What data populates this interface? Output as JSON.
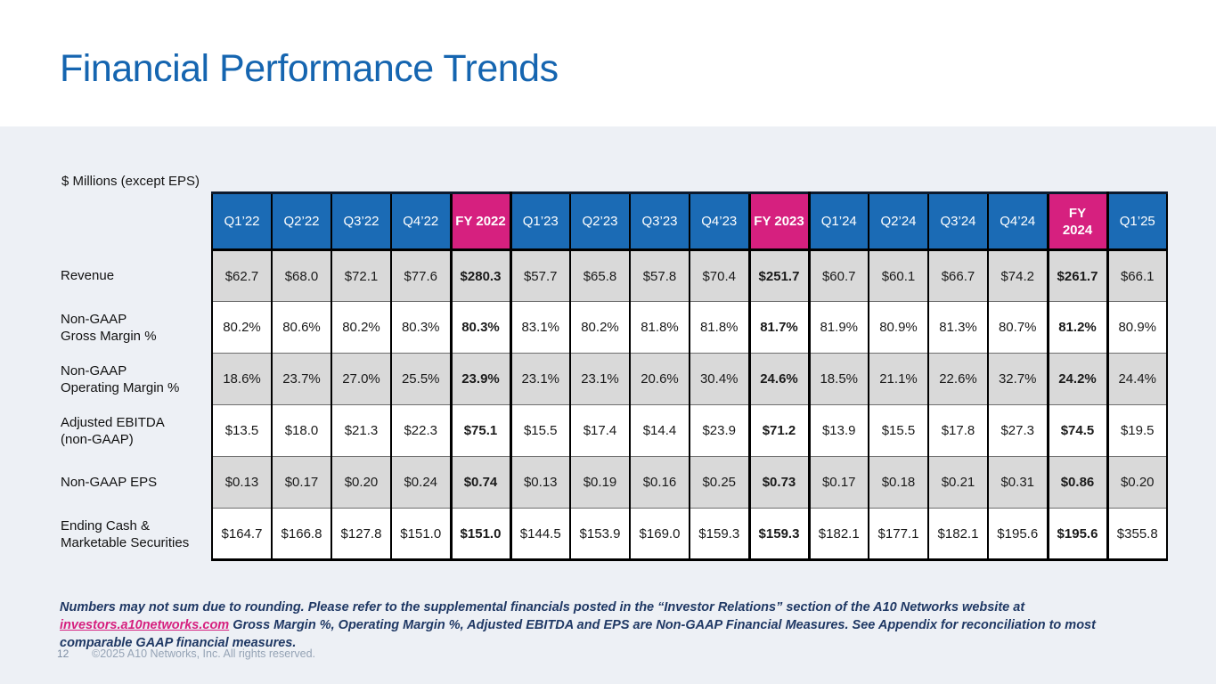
{
  "slide": {
    "title": "Financial Performance Trends",
    "units_label": "$ Millions (except EPS)",
    "page_number": "12",
    "copyright": "©2025 A10 Networks, Inc. All rights reserved."
  },
  "colors": {
    "title_blue": "#1565b0",
    "header_blue": "#1b6bb5",
    "header_pink": "#d6207f",
    "row_gray": "#d9d9d9",
    "content_bg": "#edf0f5",
    "link_pink": "#d6207f"
  },
  "chart_data": {
    "type": "table",
    "title": "Financial Performance Trends",
    "units": "$ Millions (except EPS)",
    "columns": [
      {
        "label": "Q1’22",
        "type": "quarter"
      },
      {
        "label": "Q2’22",
        "type": "quarter"
      },
      {
        "label": "Q3’22",
        "type": "quarter"
      },
      {
        "label": "Q4’22",
        "type": "quarter"
      },
      {
        "label": "FY 2022",
        "type": "fy"
      },
      {
        "label": "Q1’23",
        "type": "quarter"
      },
      {
        "label": "Q2’23",
        "type": "quarter"
      },
      {
        "label": "Q3’23",
        "type": "quarter"
      },
      {
        "label": "Q4’23",
        "type": "quarter"
      },
      {
        "label": "FY 2023",
        "type": "fy"
      },
      {
        "label": "Q1’24",
        "type": "quarter"
      },
      {
        "label": "Q2’24",
        "type": "quarter"
      },
      {
        "label": "Q3’24",
        "type": "quarter"
      },
      {
        "label": "Q4’24",
        "type": "quarter"
      },
      {
        "label": "FY 2024",
        "type": "fy",
        "wrap": true
      },
      {
        "label": "Q1’25",
        "type": "quarter"
      }
    ],
    "rows": [
      {
        "label_lines": [
          "Revenue"
        ],
        "shaded": true,
        "values": [
          "$62.7",
          "$68.0",
          "$72.1",
          "$77.6",
          "$280.3",
          "$57.7",
          "$65.8",
          "$57.8",
          "$70.4",
          "$251.7",
          "$60.7",
          "$60.1",
          "$66.7",
          "$74.2",
          "$261.7",
          "$66.1"
        ]
      },
      {
        "label_lines": [
          "Non-GAAP",
          "Gross Margin %"
        ],
        "shaded": false,
        "values": [
          "80.2%",
          "80.6%",
          "80.2%",
          "80.3%",
          "80.3%",
          "83.1%",
          "80.2%",
          "81.8%",
          "81.8%",
          "81.7%",
          "81.9%",
          "80.9%",
          "81.3%",
          "80.7%",
          "81.2%",
          "80.9%"
        ]
      },
      {
        "label_lines": [
          "Non-GAAP",
          "Operating Margin %"
        ],
        "shaded": true,
        "values": [
          "18.6%",
          "23.7%",
          "27.0%",
          "25.5%",
          "23.9%",
          "23.1%",
          "23.1%",
          "20.6%",
          "30.4%",
          "24.6%",
          "18.5%",
          "21.1%",
          "22.6%",
          "32.7%",
          "24.2%",
          "24.4%"
        ]
      },
      {
        "label_lines": [
          "Adjusted EBITDA",
          "(non-GAAP)"
        ],
        "shaded": false,
        "values": [
          "$13.5",
          "$18.0",
          "$21.3",
          "$22.3",
          "$75.1",
          "$15.5",
          "$17.4",
          "$14.4",
          "$23.9",
          "$71.2",
          "$13.9",
          "$15.5",
          "$17.8",
          "$27.3",
          "$74.5",
          "$19.5"
        ]
      },
      {
        "label_lines": [
          "Non-GAAP EPS"
        ],
        "shaded": true,
        "values": [
          "$0.13",
          "$0.17",
          "$0.20",
          "$0.24",
          "$0.74",
          "$0.13",
          "$0.19",
          "$0.16",
          "$0.25",
          "$0.73",
          "$0.17",
          "$0.18",
          "$0.21",
          "$0.31",
          "$0.86",
          "$0.20"
        ]
      },
      {
        "label_lines": [
          "Ending Cash &",
          "Marketable Securities"
        ],
        "shaded": false,
        "values": [
          "$164.7",
          "$166.8",
          "$127.8",
          "$151.0",
          "$151.0",
          "$144.5",
          "$153.9",
          "$169.0",
          "$159.3",
          "$159.3",
          "$182.1",
          "$177.1",
          "$182.1",
          "$195.6",
          "$195.6",
          "$355.8"
        ]
      }
    ]
  },
  "footnote": {
    "part1": "Numbers may not sum due to rounding. Please refer to the supplemental financials posted in the “Investor Relations” section of the A10 Networks website at ",
    "link": "investors.a10networks.com",
    "part2": " Gross Margin %, Operating Margin %, Adjusted EBITDA and EPS are Non-GAAP Financial Measures.  See Appendix for reconciliation to most comparable GAAP financial measures."
  }
}
